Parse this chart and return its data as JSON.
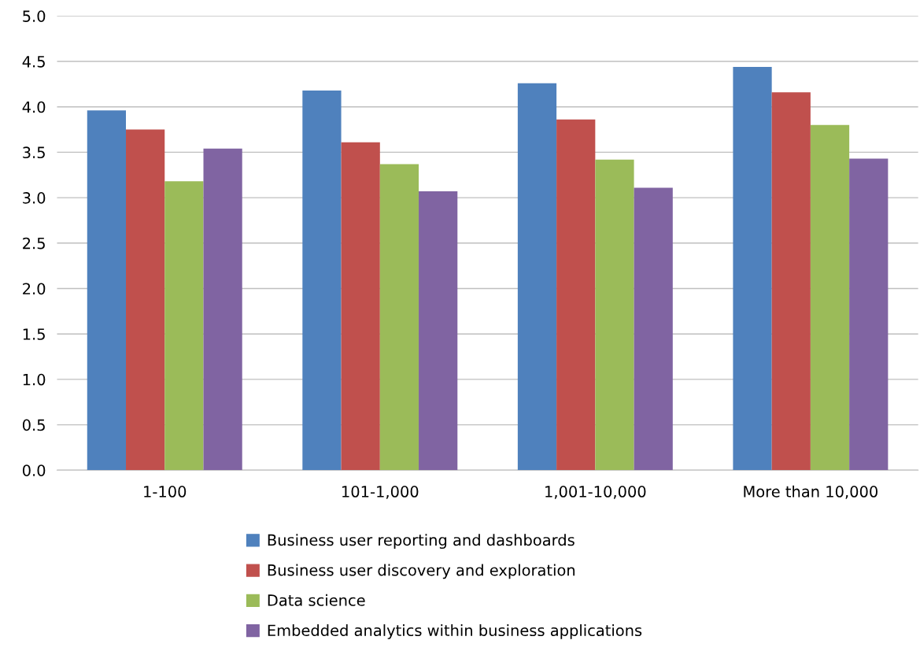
{
  "chart_data": {
    "type": "bar",
    "categories": [
      "1-100",
      "101-1,000",
      "1,001-10,000",
      "More than 10,000"
    ],
    "series": [
      {
        "name": "Business user reporting and dashboards",
        "color": "#4f81bd",
        "values": [
          3.96,
          4.18,
          4.26,
          4.44
        ]
      },
      {
        "name": "Business user discovery and exploration",
        "color": "#c0504d",
        "values": [
          3.75,
          3.61,
          3.86,
          4.16
        ]
      },
      {
        "name": "Data science",
        "color": "#9bbb59",
        "values": [
          3.18,
          3.37,
          3.42,
          3.8
        ]
      },
      {
        "name": "Embedded analytics within business applications",
        "color": "#8064a2",
        "values": [
          3.54,
          3.07,
          3.11,
          3.43
        ]
      }
    ],
    "ylim": [
      0,
      5
    ],
    "yticks": [
      {
        "value": 0,
        "label": "0.0"
      },
      {
        "value": 0.5,
        "label": "0.5"
      },
      {
        "value": 1,
        "label": "1.0"
      },
      {
        "value": 1.5,
        "label": "1.5"
      },
      {
        "value": 2,
        "label": "2.0"
      },
      {
        "value": 2.5,
        "label": "2.5"
      },
      {
        "value": 3,
        "label": "3.0"
      },
      {
        "value": 3.5,
        "label": "3.5"
      },
      {
        "value": 4,
        "label": "4.0"
      },
      {
        "value": 4.5,
        "label": "4.5"
      },
      {
        "value": 5,
        "label": "5.0"
      }
    ],
    "grid": "y",
    "legend": "bottom"
  }
}
